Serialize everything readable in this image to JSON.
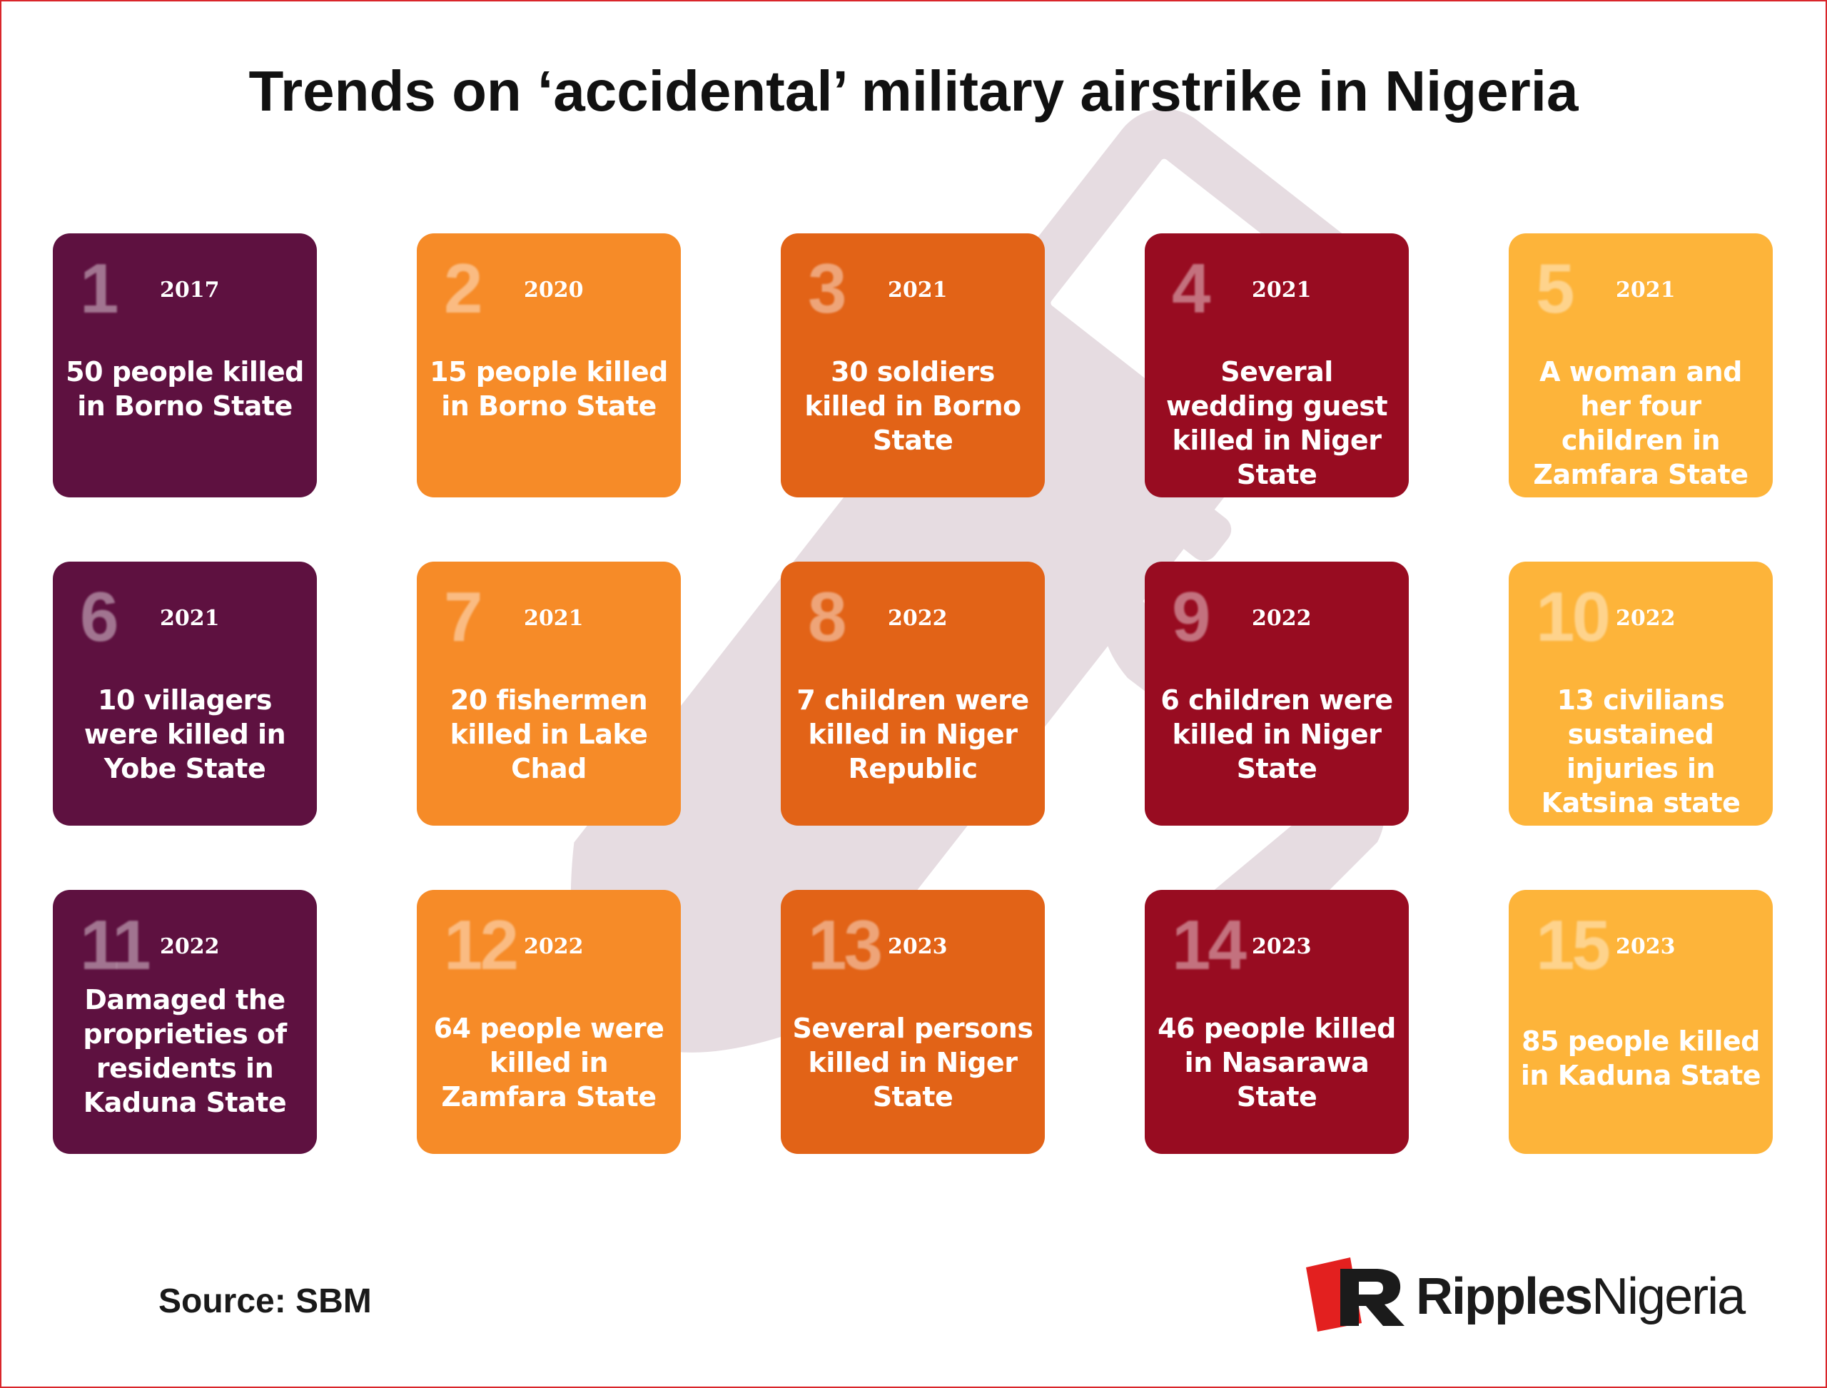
{
  "title": "Trends on ‘accidental’ military airstrike in Nigeria",
  "colors": {
    "plum": "#5e1140",
    "orange": "#f68b28",
    "burnt_orange": "#e26317",
    "crimson": "#980c21",
    "amber": "#fdb43a",
    "frame": "#d9262b",
    "background_bomb": "#e6dce1"
  },
  "background_icon": "bomb-icon",
  "events": [
    {
      "number": "1",
      "year": "2017",
      "text": "50 people killed in Borno State"
    },
    {
      "number": "2",
      "year": "2020",
      "text": "15 people killed in Borno State"
    },
    {
      "number": "3",
      "year": "2021",
      "text": "30 soldiers killed in Borno State"
    },
    {
      "number": "4",
      "year": "2021",
      "text": "Several wedding guest killed in Niger State"
    },
    {
      "number": "5",
      "year": "2021",
      "text": "A woman and her four children in Zamfara State"
    },
    {
      "number": "6",
      "year": "2021",
      "text": "10 villagers were killed in Yobe State"
    },
    {
      "number": "7",
      "year": "2021",
      "text": "20 fishermen killed in  Lake Chad"
    },
    {
      "number": "8",
      "year": "2022",
      "text": "7 children were killed in Niger Republic"
    },
    {
      "number": "9",
      "year": "2022",
      "text": "6 children were killed in Niger State"
    },
    {
      "number": "10",
      "year": "2022",
      "text": "13 civilians sustained injuries in  Katsina state"
    },
    {
      "number": "11",
      "year": "2022",
      "text": "Damaged the proprieties of residents in Kaduna State"
    },
    {
      "number": "12",
      "year": "2022",
      "text": "64 people were killed in Zamfara State"
    },
    {
      "number": "13",
      "year": "2023",
      "text": "Several persons killed in Niger State"
    },
    {
      "number": "14",
      "year": "2023",
      "text": "46 people killed in Nasarawa State"
    },
    {
      "number": "15",
      "year": "2023",
      "text": "85 people killed in Kaduna State"
    }
  ],
  "source": "Source: SBM",
  "logo": {
    "bold": "Ripples",
    "light": "Nigeria",
    "icon": "ripples-r-logo-icon"
  }
}
